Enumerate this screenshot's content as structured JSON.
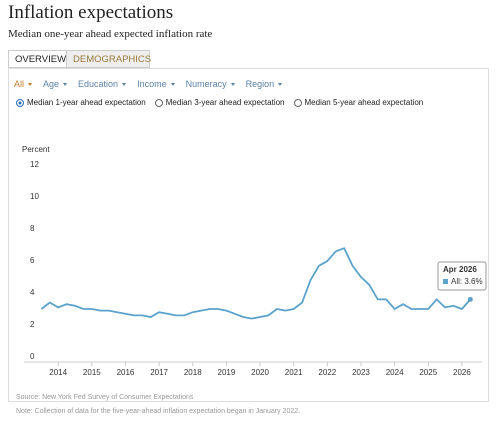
{
  "header": {
    "title": "Inflation expectations",
    "subtitle": "Median one-year ahead expected inflation rate"
  },
  "tabs": [
    "OVERVIEW",
    "DEMOGRAPHICS"
  ],
  "filters": [
    "All",
    "Age",
    "Education",
    "Income",
    "Numeracy",
    "Region"
  ],
  "options": [
    "Median 1-year ahead expectation",
    "Median 3-year ahead expectation",
    "Median 5-year ahead expectation"
  ],
  "chart_data": {
    "type": "line",
    "y_label": "Percent",
    "x": [
      2013.5,
      2013.75,
      2014.0,
      2014.25,
      2014.5,
      2014.75,
      2015.0,
      2015.25,
      2015.5,
      2015.75,
      2016.0,
      2016.25,
      2016.5,
      2016.75,
      2017.0,
      2017.25,
      2017.5,
      2017.75,
      2018.0,
      2018.25,
      2018.5,
      2018.75,
      2019.0,
      2019.25,
      2019.5,
      2019.75,
      2020.0,
      2020.25,
      2020.5,
      2020.75,
      2021.0,
      2021.25,
      2021.5,
      2021.75,
      2022.0,
      2022.25,
      2022.5,
      2022.75,
      2023.0,
      2023.25,
      2023.5,
      2023.75,
      2024.0,
      2024.25,
      2024.5,
      2024.75,
      2025.0,
      2025.25,
      2025.5,
      2025.75,
      2026.0,
      2026.25
    ],
    "series": [
      {
        "color": "#5ba3cc",
        "values": [
          3.0,
          3.4,
          3.1,
          3.3,
          3.2,
          3.0,
          3.0,
          2.9,
          2.9,
          2.8,
          2.7,
          2.6,
          2.6,
          2.5,
          2.8,
          2.7,
          2.6,
          2.6,
          2.8,
          2.9,
          3.0,
          3.0,
          2.9,
          2.7,
          2.5,
          2.4,
          2.5,
          2.6,
          3.0,
          2.9,
          3.0,
          3.4,
          4.8,
          5.7,
          6.0,
          6.6,
          6.8,
          5.7,
          5.0,
          4.5,
          3.6,
          3.6,
          3.0,
          3.3,
          3.0,
          3.0,
          3.0,
          3.6,
          3.1,
          3.2,
          3.0,
          3.6
        ]
      }
    ],
    "xlim": [
      2013.4,
      2026.3
    ],
    "xticks": [
      2014,
      2015,
      2016,
      2017,
      2018,
      2019,
      2020,
      2021,
      2022,
      2023,
      2024,
      2025,
      2026
    ],
    "ylim": [
      0,
      12
    ],
    "yticks": [
      0,
      2,
      4,
      6,
      8,
      10,
      12
    ],
    "grid": false,
    "tooltip": {
      "title": "Apr 2026",
      "label": "All: 3.6%"
    }
  },
  "footer": {
    "source": "Source: New York Fed Survey of Consumer Expectations",
    "note": "Note: Collection of data for the five-year-ahead inflation expectation began in January 2022."
  }
}
